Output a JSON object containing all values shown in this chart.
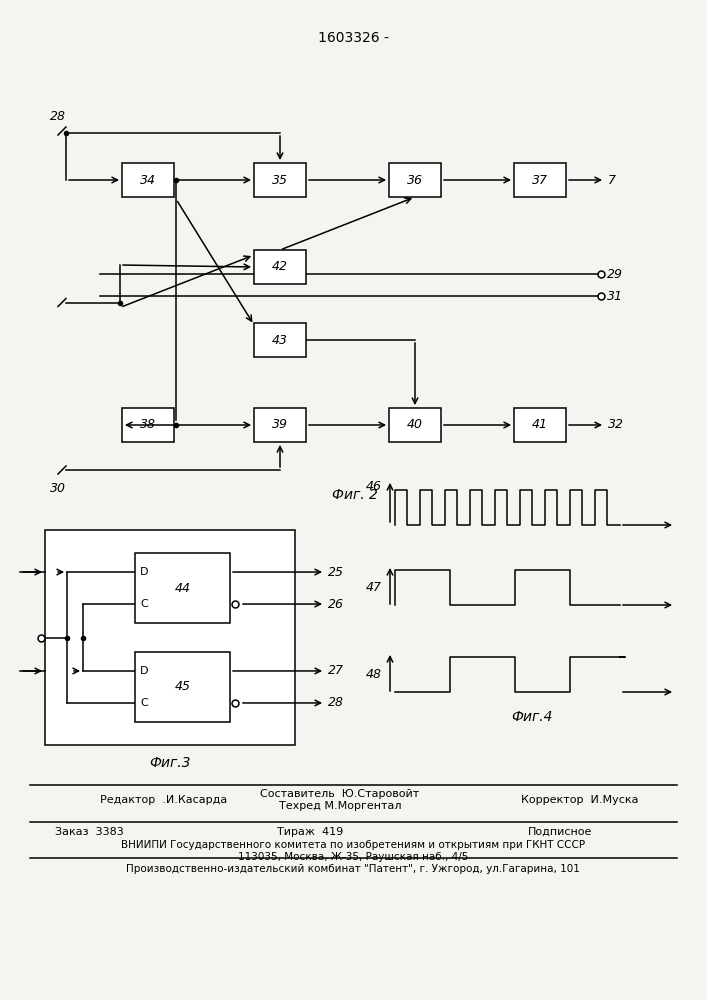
{
  "title": "1603326 -",
  "bg_color": "#f5f4f0",
  "lc": "#000000",
  "fig2_label": "Фиг. 2",
  "fig3_label": "Фиг.3",
  "fig4_label": "Фиг.4"
}
